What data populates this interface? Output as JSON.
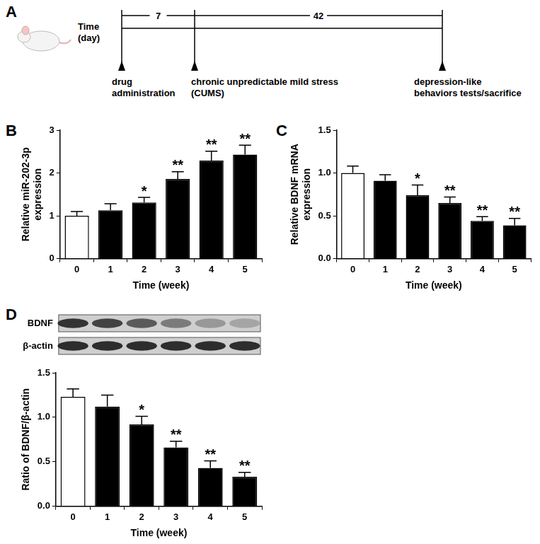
{
  "timeline": {
    "panel": "A",
    "axis_label": [
      "Time",
      "(day)"
    ],
    "intervals": [
      7,
      42
    ],
    "events": [
      [
        "drug",
        "administration"
      ],
      [
        "chronic unpredictable mild stress",
        "(CUMS)"
      ],
      [
        "depression-like",
        "behaviors tests/sacrifice"
      ]
    ]
  },
  "chart_data": [
    {
      "panel": "B",
      "type": "bar",
      "categories": [
        "0",
        "1",
        "2",
        "3",
        "4",
        "5"
      ],
      "values": [
        1.0,
        1.13,
        1.31,
        1.86,
        2.29,
        2.43
      ],
      "errors": [
        0.1,
        0.15,
        0.12,
        0.17,
        0.22,
        0.22
      ],
      "annotations": [
        null,
        null,
        "*",
        "**",
        "**",
        "**"
      ],
      "colors": [
        "#ffffff",
        "#000000",
        "#000000",
        "#000000",
        "#000000",
        "#000000"
      ],
      "x_label": "Time (week)",
      "y_label": [
        "Relative miR-202-3p",
        "expression"
      ],
      "ylim": [
        0,
        3
      ],
      "yticks": [
        0,
        1,
        2,
        3
      ],
      "grid": false
    },
    {
      "panel": "C",
      "type": "bar",
      "categories": [
        "0",
        "1",
        "2",
        "3",
        "4",
        "5"
      ],
      "values": [
        1.0,
        0.91,
        0.74,
        0.65,
        0.44,
        0.39
      ],
      "errors": [
        0.08,
        0.07,
        0.12,
        0.07,
        0.05,
        0.08
      ],
      "annotations": [
        null,
        null,
        "*",
        "**",
        "**",
        "**"
      ],
      "colors": [
        "#ffffff",
        "#000000",
        "#000000",
        "#000000",
        "#000000",
        "#000000"
      ],
      "x_label": "Time (week)",
      "y_label": [
        "Relative BDNF mRNA",
        "expression"
      ],
      "ylim": [
        0,
        1.5
      ],
      "yticks": [
        {
          "value": 0,
          "label": "0.0"
        },
        0.5,
        {
          "value": 1,
          "label": "1.0"
        },
        1.5
      ],
      "grid": false
    },
    {
      "panel": "D",
      "type": "bar",
      "categories": [
        "0",
        "1",
        "2",
        "3",
        "4",
        "5"
      ],
      "values": [
        1.23,
        1.12,
        0.92,
        0.66,
        0.43,
        0.33
      ],
      "errors": [
        0.09,
        0.13,
        0.09,
        0.07,
        0.08,
        0.05
      ],
      "annotations": [
        null,
        null,
        "*",
        "**",
        "**",
        "**"
      ],
      "colors": [
        "#ffffff",
        "#000000",
        "#000000",
        "#000000",
        "#000000",
        "#000000"
      ],
      "x_label": "Time (week)",
      "y_label": "Ratio of BDNF/β-actin",
      "ylim": [
        0,
        1.5
      ],
      "yticks": [
        {
          "value": 0,
          "label": "0.0"
        },
        0.5,
        {
          "value": 1,
          "label": "1.0"
        },
        1.5
      ],
      "grid": false,
      "blot": {
        "rows": [
          "BDNF",
          "β-actin"
        ]
      }
    }
  ]
}
